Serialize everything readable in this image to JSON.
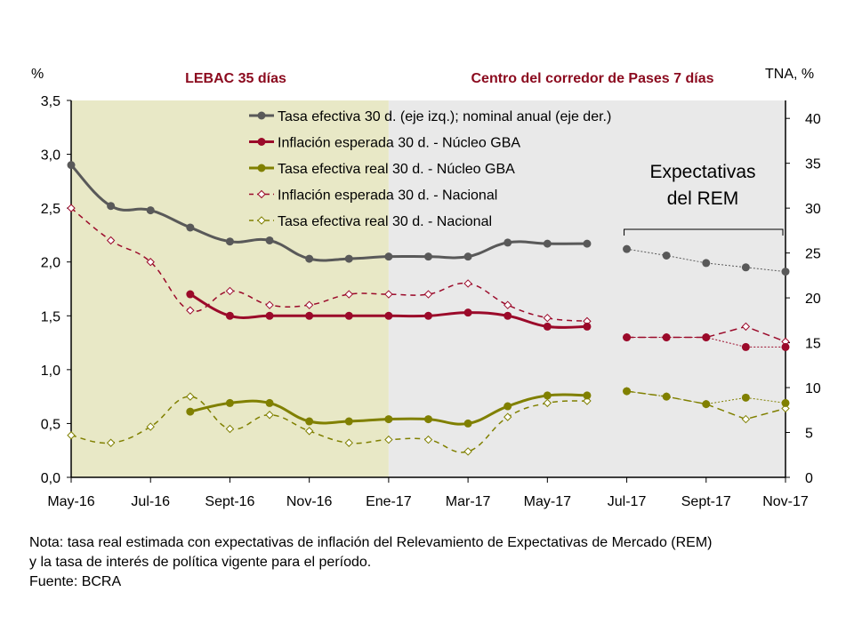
{
  "chart_data": {
    "type": "line",
    "left_axis_label": "%",
    "right_axis_label": "TNA, %",
    "ylim": [
      0,
      3.5
    ],
    "y_ticks": [
      "0,0",
      "0,5",
      "1,0",
      "1,5",
      "2,0",
      "2,5",
      "3,0",
      "3,5"
    ],
    "y2lim": [
      0,
      42
    ],
    "y2_ticks": [
      "0",
      "5",
      "10",
      "15",
      "20",
      "25",
      "30",
      "35",
      "40"
    ],
    "x": [
      "May-16",
      "Jun-16",
      "Jul-16",
      "Ago-16",
      "Sept-16",
      "Oct-16",
      "Nov-16",
      "Dic-16",
      "Ene-17",
      "Feb-17",
      "Mar-17",
      "Abr-17",
      "May-17",
      "Jun-17",
      "Jul-17",
      "Ago-17",
      "Sept-17",
      "Oct-17",
      "Nov-17"
    ],
    "x_tick_labels": [
      "May-16",
      "Jul-16",
      "Sept-16",
      "Nov-16",
      "Ene-17",
      "Mar-17",
      "May-17",
      "Jul-17",
      "Sept-17",
      "Nov-17"
    ],
    "regions": [
      {
        "label": "LEBAC 35 días",
        "from": "May-16",
        "to": "Ene-17",
        "color": "#e8e8c6"
      },
      {
        "label": "Centro del corredor de Pases 7 días",
        "from": "Ene-17",
        "to": "Nov-17",
        "color": "#e9e9e9"
      }
    ],
    "region_label_color": "#8b0a1e",
    "rem_annotation": "Expectativas del REM",
    "rem_annotation_lines": [
      "Expectativas",
      "del REM"
    ],
    "series": [
      {
        "name": "Tasa efectiva 30 d. (eje izq.); nominal anual (eje der.)",
        "color": "#595959",
        "style": "solid",
        "marker": "circle",
        "values": [
          2.9,
          2.52,
          2.48,
          2.32,
          2.19,
          2.2,
          2.03,
          2.03,
          2.05,
          2.05,
          2.05,
          2.18,
          2.17,
          2.17,
          null,
          null,
          null,
          null,
          null
        ],
        "rem_values": [
          null,
          null,
          null,
          null,
          null,
          null,
          null,
          null,
          null,
          null,
          null,
          null,
          null,
          null,
          2.12,
          2.06,
          1.99,
          1.95,
          1.91
        ]
      },
      {
        "name": "Inflación esperada 30 d. - Núcleo GBA",
        "color": "#9b0a2a",
        "style": "solid",
        "marker": "circle",
        "values": [
          null,
          null,
          null,
          1.7,
          1.5,
          1.5,
          1.5,
          1.5,
          1.5,
          1.5,
          1.53,
          1.5,
          1.4,
          1.4,
          null,
          null,
          null,
          null,
          null
        ],
        "rem_values": [
          null,
          null,
          null,
          null,
          null,
          null,
          null,
          null,
          null,
          null,
          null,
          null,
          null,
          null,
          1.3,
          1.3,
          1.3,
          1.21,
          1.21
        ]
      },
      {
        "name": "Tasa efectiva real 30 d. - Núcleo GBA",
        "color": "#808000",
        "style": "solid",
        "marker": "circle",
        "values": [
          null,
          null,
          null,
          0.61,
          0.69,
          0.69,
          0.52,
          0.52,
          0.54,
          0.54,
          0.5,
          0.66,
          0.76,
          0.76,
          null,
          null,
          null,
          null,
          null
        ],
        "rem_values": [
          null,
          null,
          null,
          null,
          null,
          null,
          null,
          null,
          null,
          null,
          null,
          null,
          null,
          null,
          0.8,
          0.75,
          0.68,
          0.74,
          0.69
        ]
      },
      {
        "name": "Inflación esperada 30 d. - Nacional",
        "color": "#9b0a2a",
        "style": "dashed",
        "marker": "diamond",
        "values": [
          2.5,
          2.2,
          2.0,
          1.55,
          1.73,
          1.6,
          1.6,
          1.7,
          1.7,
          1.7,
          1.8,
          1.6,
          1.48,
          1.45,
          null,
          null,
          null,
          null,
          null
        ],
        "rem_values": [
          null,
          null,
          null,
          null,
          null,
          null,
          null,
          null,
          null,
          null,
          null,
          null,
          null,
          null,
          1.3,
          1.3,
          1.3,
          1.4,
          1.26
        ]
      },
      {
        "name": "Tasa efectiva real 30 d. - Nacional",
        "color": "#808000",
        "style": "dashed",
        "marker": "diamond",
        "values": [
          0.39,
          0.32,
          0.47,
          0.75,
          0.45,
          0.58,
          0.43,
          0.32,
          0.35,
          0.35,
          0.24,
          0.56,
          0.69,
          0.71,
          null,
          null,
          null,
          null,
          null
        ],
        "rem_values": [
          null,
          null,
          null,
          null,
          null,
          null,
          null,
          null,
          null,
          null,
          null,
          null,
          null,
          null,
          0.8,
          0.75,
          0.68,
          0.54,
          0.64
        ]
      }
    ]
  },
  "note": {
    "line1": "Nota: tasa real estimada con expectativas de inflación del Relevamiento de Expectativas de Mercado (REM)",
    "line2": "y la tasa de interés de política vigente para el período.",
    "source": "Fuente: BCRA"
  }
}
